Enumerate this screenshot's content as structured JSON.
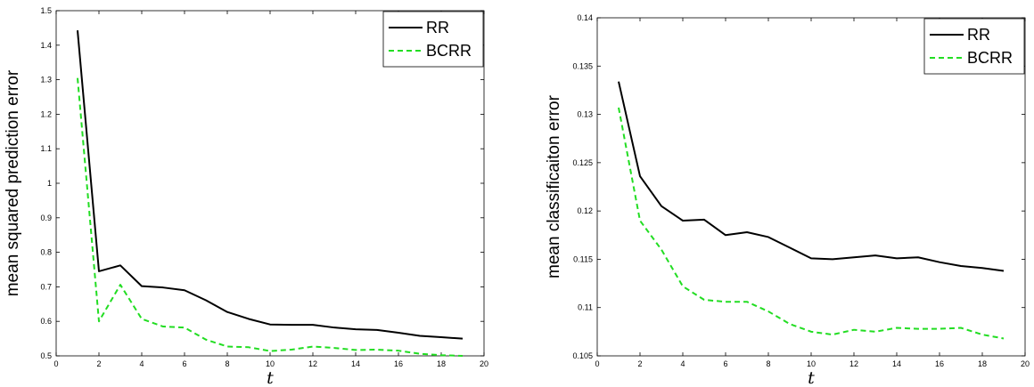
{
  "chart_data": [
    {
      "type": "line",
      "title": "",
      "xlabel": "t",
      "ylabel": "mean squared prediction error",
      "xlim": [
        0,
        20
      ],
      "ylim": [
        0.5,
        1.5
      ],
      "xticks": [
        "0",
        "2",
        "4",
        "6",
        "8",
        "10",
        "12",
        "14",
        "16",
        "18",
        "20"
      ],
      "yticks": [
        "0.5",
        "0.6",
        "0.7",
        "0.8",
        "0.9",
        "1",
        "1.1",
        "1.2",
        "1.3",
        "1.4",
        "1.5"
      ],
      "grid": false,
      "legend_position": "top-right",
      "x": [
        1,
        2,
        3,
        4,
        5,
        6,
        7,
        8,
        9,
        10,
        11,
        12,
        13,
        14,
        15,
        16,
        17,
        18,
        19
      ],
      "series": [
        {
          "name": "RR",
          "color": "#000000",
          "style": "solid",
          "values": [
            1.443,
            0.745,
            0.762,
            0.702,
            0.698,
            0.69,
            0.661,
            0.627,
            0.607,
            0.591,
            0.59,
            0.59,
            0.582,
            0.577,
            0.575,
            0.567,
            0.558,
            0.554,
            0.55
          ]
        },
        {
          "name": "BCRR",
          "color": "#22dd22",
          "style": "dashed",
          "values": [
            1.305,
            0.6,
            0.706,
            0.607,
            0.585,
            0.582,
            0.547,
            0.527,
            0.525,
            0.514,
            0.518,
            0.527,
            0.523,
            0.517,
            0.518,
            0.515,
            0.506,
            0.502,
            0.5
          ]
        }
      ]
    },
    {
      "type": "line",
      "title": "",
      "xlabel": "t",
      "ylabel": "mean classificaiton error",
      "xlim": [
        0,
        20
      ],
      "ylim": [
        0.105,
        0.14
      ],
      "xticks": [
        "0",
        "2",
        "4",
        "6",
        "8",
        "10",
        "12",
        "14",
        "16",
        "18",
        "20"
      ],
      "yticks": [
        "0.105",
        "0.11",
        "0.115",
        "0.12",
        "0.125",
        "0.13",
        "0.135",
        "0.14"
      ],
      "grid": false,
      "legend_position": "top-right",
      "x": [
        1,
        2,
        3,
        4,
        5,
        6,
        7,
        8,
        9,
        10,
        11,
        12,
        13,
        14,
        15,
        16,
        17,
        18,
        19
      ],
      "series": [
        {
          "name": "RR",
          "color": "#000000",
          "style": "solid",
          "values": [
            0.1334,
            0.1236,
            0.1205,
            0.119,
            0.1191,
            0.1175,
            0.1178,
            0.1173,
            0.1162,
            0.1151,
            0.115,
            0.1152,
            0.1154,
            0.1151,
            0.1152,
            0.1147,
            0.1143,
            0.1141,
            0.1138
          ]
        },
        {
          "name": "BCRR",
          "color": "#22dd22",
          "style": "dashed",
          "values": [
            0.1307,
            0.119,
            0.116,
            0.1122,
            0.1108,
            0.1106,
            0.1106,
            0.1096,
            0.1083,
            0.1075,
            0.1072,
            0.1077,
            0.1075,
            0.1079,
            0.1078,
            0.1078,
            0.1079,
            0.1072,
            0.1068
          ]
        }
      ]
    }
  ]
}
